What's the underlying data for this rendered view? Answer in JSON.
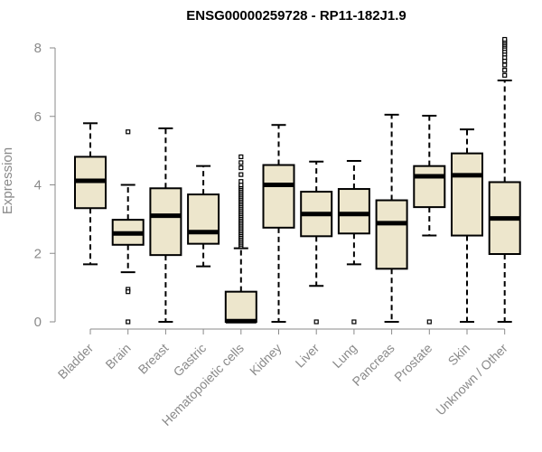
{
  "chart_data": {
    "type": "boxplot",
    "title": "ENSG00000259728 - RP11-182J1.9",
    "xlabel": "",
    "ylabel": "Expression",
    "ylim": [
      0,
      8
    ],
    "yticks": [
      0,
      2,
      4,
      6,
      8
    ],
    "box_color": "#ede6cc",
    "categories": [
      "Bladder",
      "Brain",
      "Breast",
      "Gastric",
      "Hematopoietic cells",
      "Kidney",
      "Liver",
      "Lung",
      "Pancreas",
      "Prostate",
      "Skin",
      "Unknown / Other"
    ],
    "series": [
      {
        "name": "Bladder",
        "min": 1.68,
        "q1": 3.32,
        "median": 4.12,
        "q3": 4.82,
        "max": 5.8,
        "outliers": []
      },
      {
        "name": "Brain",
        "min": 1.45,
        "q1": 2.25,
        "median": 2.58,
        "q3": 2.98,
        "max": 4.0,
        "outliers": [
          5.55,
          0.95,
          0.88,
          0.0
        ]
      },
      {
        "name": "Breast",
        "min": 0.0,
        "q1": 1.95,
        "median": 3.1,
        "q3": 3.9,
        "max": 5.65,
        "outliers": []
      },
      {
        "name": "Gastric",
        "min": 1.62,
        "q1": 2.28,
        "median": 2.62,
        "q3": 3.72,
        "max": 4.55,
        "outliers": []
      },
      {
        "name": "Hematopoietic cells",
        "min": 0.0,
        "q1": 0.0,
        "median": 0.02,
        "q3": 0.88,
        "max": 2.15,
        "outliers": [
          2.2,
          2.25,
          2.3,
          2.35,
          2.4,
          2.45,
          2.5,
          2.55,
          2.6,
          2.65,
          2.7,
          2.75,
          2.8,
          2.85,
          2.9,
          2.95,
          3.0,
          3.05,
          3.1,
          3.15,
          3.2,
          3.25,
          3.3,
          3.35,
          3.4,
          3.45,
          3.5,
          3.55,
          3.6,
          3.65,
          3.7,
          3.75,
          3.8,
          3.85,
          3.9,
          3.95,
          4.0,
          4.1,
          4.3,
          4.5,
          4.65,
          4.82
        ]
      },
      {
        "name": "Kidney",
        "min": 0.0,
        "q1": 2.75,
        "median": 4.0,
        "q3": 4.58,
        "max": 5.75,
        "outliers": []
      },
      {
        "name": "Liver",
        "min": 1.05,
        "q1": 2.5,
        "median": 3.15,
        "q3": 3.8,
        "max": 4.68,
        "outliers": [
          0.0
        ]
      },
      {
        "name": "Lung",
        "min": 1.68,
        "q1": 2.58,
        "median": 3.15,
        "q3": 3.88,
        "max": 4.7,
        "outliers": [
          0.0
        ]
      },
      {
        "name": "Pancreas",
        "min": 0.0,
        "q1": 1.55,
        "median": 2.88,
        "q3": 3.55,
        "max": 6.05,
        "outliers": []
      },
      {
        "name": "Prostate",
        "min": 2.52,
        "q1": 3.35,
        "median": 4.25,
        "q3": 4.55,
        "max": 6.02,
        "outliers": [
          0.0
        ]
      },
      {
        "name": "Skin",
        "min": 0.0,
        "q1": 2.52,
        "median": 4.28,
        "q3": 4.92,
        "max": 5.62,
        "outliers": []
      },
      {
        "name": "Unknown / Other",
        "min": 0.0,
        "q1": 1.98,
        "median": 3.02,
        "q3": 4.08,
        "max": 7.05,
        "outliers": [
          7.2,
          7.35,
          7.5,
          7.62,
          7.72,
          7.82,
          7.9,
          7.98,
          8.05,
          8.1,
          8.15,
          8.2,
          8.25
        ]
      }
    ]
  }
}
